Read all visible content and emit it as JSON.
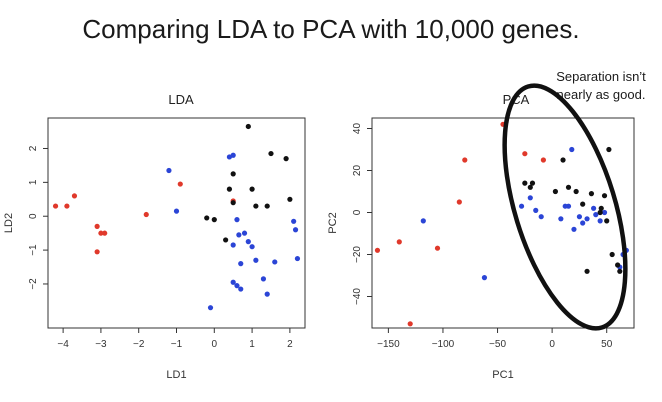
{
  "title": "Comparing LDA to PCA with 10,000 genes.",
  "annotation": [
    "Separation isn’t",
    "nearly as good."
  ],
  "colors": {
    "red": "#e0392b",
    "blue": "#2b45d6",
    "black": "#111111",
    "axis": "#333333"
  },
  "chart_data": [
    {
      "type": "scatter",
      "title": "LDA",
      "xlabel": "LD1",
      "ylabel": "LD2",
      "xlim": [
        -4.4,
        2.4
      ],
      "ylim": [
        -3.3,
        2.9
      ],
      "xticks": [
        -4,
        -3,
        -2,
        -1,
        0,
        1,
        2
      ],
      "yticks": [
        -2,
        -1,
        0,
        1,
        2
      ],
      "grid": false,
      "series": [
        {
          "color": "red",
          "points": [
            [
              -4.2,
              0.3
            ],
            [
              -3.9,
              0.3
            ],
            [
              -3.7,
              0.6
            ],
            [
              -3.1,
              -0.3
            ],
            [
              -3.0,
              -0.5
            ],
            [
              -2.9,
              -0.5
            ],
            [
              -3.1,
              -1.05
            ],
            [
              -1.8,
              0.05
            ],
            [
              -0.9,
              0.95
            ],
            [
              0.5,
              0.45
            ]
          ]
        },
        {
          "color": "blue",
          "points": [
            [
              -1.2,
              1.35
            ],
            [
              -1.0,
              0.15
            ],
            [
              0.4,
              1.75
            ],
            [
              0.5,
              1.8
            ],
            [
              0.6,
              -0.1
            ],
            [
              0.65,
              -0.55
            ],
            [
              0.8,
              -0.5
            ],
            [
              0.5,
              -0.85
            ],
            [
              0.9,
              -0.75
            ],
            [
              0.7,
              -1.4
            ],
            [
              1.0,
              -0.9
            ],
            [
              0.5,
              -1.95
            ],
            [
              0.6,
              -2.05
            ],
            [
              1.3,
              -1.85
            ],
            [
              1.6,
              -1.35
            ],
            [
              1.1,
              -1.3
            ],
            [
              2.1,
              -0.15
            ],
            [
              2.15,
              -0.4
            ],
            [
              2.2,
              -1.25
            ],
            [
              -0.1,
              -2.7
            ],
            [
              1.4,
              -2.3
            ],
            [
              0.7,
              -2.15
            ]
          ]
        },
        {
          "color": "black",
          "points": [
            [
              0.9,
              2.65
            ],
            [
              1.5,
              1.85
            ],
            [
              1.9,
              1.7
            ],
            [
              0.5,
              1.25
            ],
            [
              0.4,
              0.8
            ],
            [
              1.0,
              0.8
            ],
            [
              1.1,
              0.3
            ],
            [
              2.0,
              0.5
            ],
            [
              -0.2,
              -0.05
            ],
            [
              0.0,
              -0.1
            ],
            [
              0.3,
              -0.7
            ],
            [
              1.4,
              0.3
            ],
            [
              0.5,
              0.4
            ]
          ]
        }
      ]
    },
    {
      "type": "scatter",
      "title": "PCA",
      "xlabel": "PC1",
      "ylabel": "PC2",
      "xlim": [
        -165,
        75
      ],
      "ylim": [
        -55,
        45
      ],
      "xticks": [
        -150,
        -100,
        -50,
        0,
        50
      ],
      "yticks": [
        -40,
        -20,
        0,
        20,
        40
      ],
      "grid": false,
      "series": [
        {
          "color": "red",
          "points": [
            [
              -45,
              42
            ],
            [
              -25,
              28
            ],
            [
              -8,
              25
            ],
            [
              -80,
              25
            ],
            [
              -85,
              5
            ],
            [
              -160,
              -18
            ],
            [
              -140,
              -14
            ],
            [
              -105,
              -17
            ],
            [
              -130,
              -53
            ]
          ]
        },
        {
          "color": "blue",
          "points": [
            [
              -118,
              -4
            ],
            [
              -62,
              -31
            ],
            [
              18,
              30
            ],
            [
              -28,
              3
            ],
            [
              -20,
              7
            ],
            [
              -15,
              1
            ],
            [
              -10,
              -2
            ],
            [
              15,
              3
            ],
            [
              25,
              -2
            ],
            [
              28,
              -5
            ],
            [
              32,
              -3
            ],
            [
              38,
              2
            ],
            [
              40,
              -1
            ],
            [
              44,
              -4
            ],
            [
              48,
              0
            ],
            [
              12,
              3
            ],
            [
              8,
              -3
            ],
            [
              20,
              -8
            ],
            [
              65,
              -20
            ],
            [
              68,
              -18
            ],
            [
              62,
              -26
            ]
          ]
        },
        {
          "color": "black",
          "points": [
            [
              -25,
              14
            ],
            [
              -18,
              14
            ],
            [
              -20,
              12
            ],
            [
              3,
              10
            ],
            [
              10,
              25
            ],
            [
              15,
              12
            ],
            [
              22,
              10
            ],
            [
              28,
              4
            ],
            [
              36,
              9
            ],
            [
              44,
              0
            ],
            [
              48,
              8
            ],
            [
              50,
              -4
            ],
            [
              52,
              30
            ],
            [
              55,
              -20
            ],
            [
              60,
              -25
            ],
            [
              62,
              -28
            ],
            [
              32,
              -28
            ],
            [
              45,
              2
            ]
          ]
        }
      ]
    }
  ]
}
